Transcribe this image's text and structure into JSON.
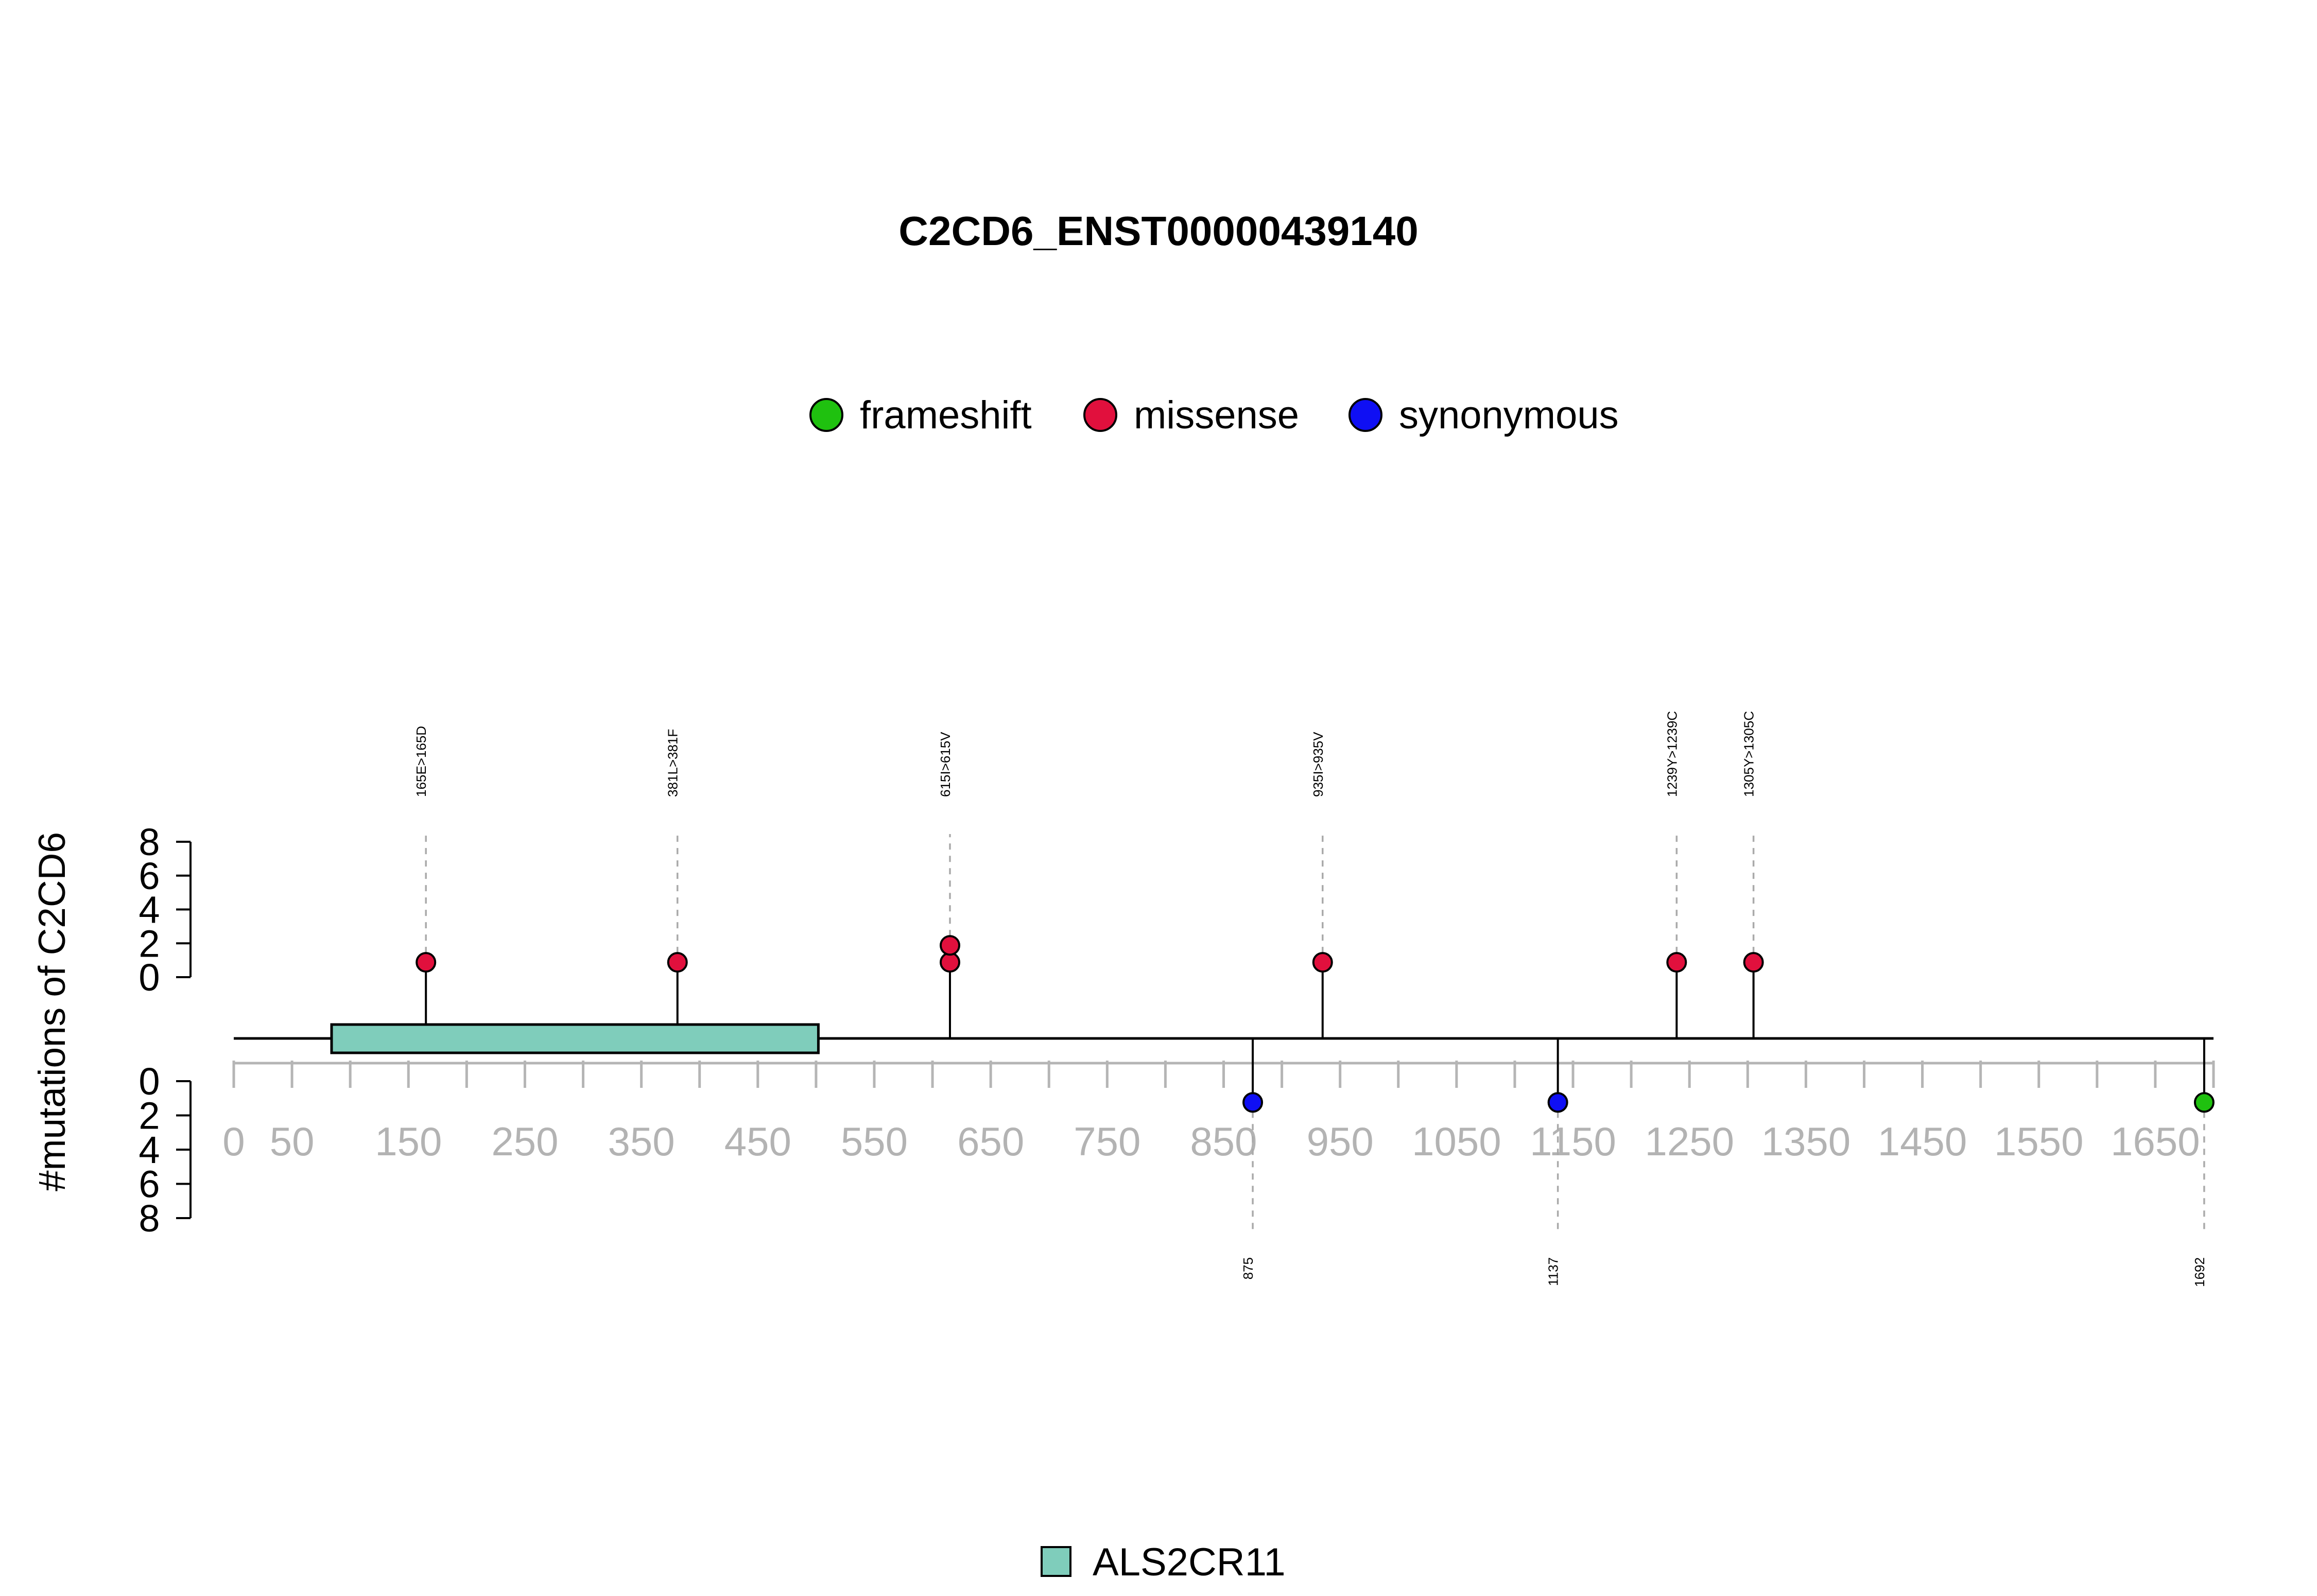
{
  "chart_data": {
    "type": "lollipop",
    "title": "C2CD6_ENST00000439140",
    "ylabel": "#mutations of C2CD6",
    "legend": {
      "placement": "top",
      "items": [
        {
          "label": "frameshift",
          "color": "#1fc10f"
        },
        {
          "label": "missense",
          "color": "#e1103d"
        },
        {
          "label": "synonymous",
          "color": "#0f0ff4"
        }
      ]
    },
    "protein_length": 1700,
    "x_ticks": [
      0,
      50,
      150,
      250,
      350,
      450,
      550,
      650,
      750,
      850,
      950,
      1050,
      1150,
      1250,
      1350,
      1450,
      1550,
      1650
    ],
    "minor_ticks": [
      0,
      50,
      100,
      150,
      200,
      250,
      300,
      350,
      400,
      450,
      500,
      550,
      600,
      650,
      700,
      750,
      800,
      850,
      900,
      950,
      1000,
      1050,
      1100,
      1150,
      1200,
      1250,
      1300,
      1350,
      1400,
      1450,
      1500,
      1550,
      1600,
      1650,
      1700
    ],
    "y_ticks": [
      0,
      2,
      4,
      6,
      8
    ],
    "ylim": [
      0,
      8
    ],
    "domains": [
      {
        "name": "ALS2CR11",
        "start": 84,
        "end": 502,
        "color": "#7fcdbb"
      }
    ],
    "mutations_above": [
      {
        "position": 165,
        "label": "165E>165D",
        "type": "missense",
        "count": 1
      },
      {
        "position": 381,
        "label": "381L>381F",
        "type": "missense",
        "count": 1
      },
      {
        "position": 615,
        "label": "615I>615V",
        "type": "missense",
        "count": 2
      },
      {
        "position": 935,
        "label": "935I>935V",
        "type": "missense",
        "count": 1
      },
      {
        "position": 1239,
        "label": "1239Y>1239C",
        "type": "missense",
        "count": 1
      },
      {
        "position": 1305,
        "label": "1305Y>1305C",
        "type": "missense",
        "count": 1
      }
    ],
    "mutations_below": [
      {
        "position": 875,
        "label": "875",
        "type": "synonymous",
        "count": 1
      },
      {
        "position": 1137,
        "label": "1137",
        "type": "synonymous",
        "count": 1
      },
      {
        "position": 1692,
        "label": "1692",
        "type": "frameshift",
        "count": 1
      }
    ],
    "domain_legend": {
      "placement": "bottom"
    }
  }
}
